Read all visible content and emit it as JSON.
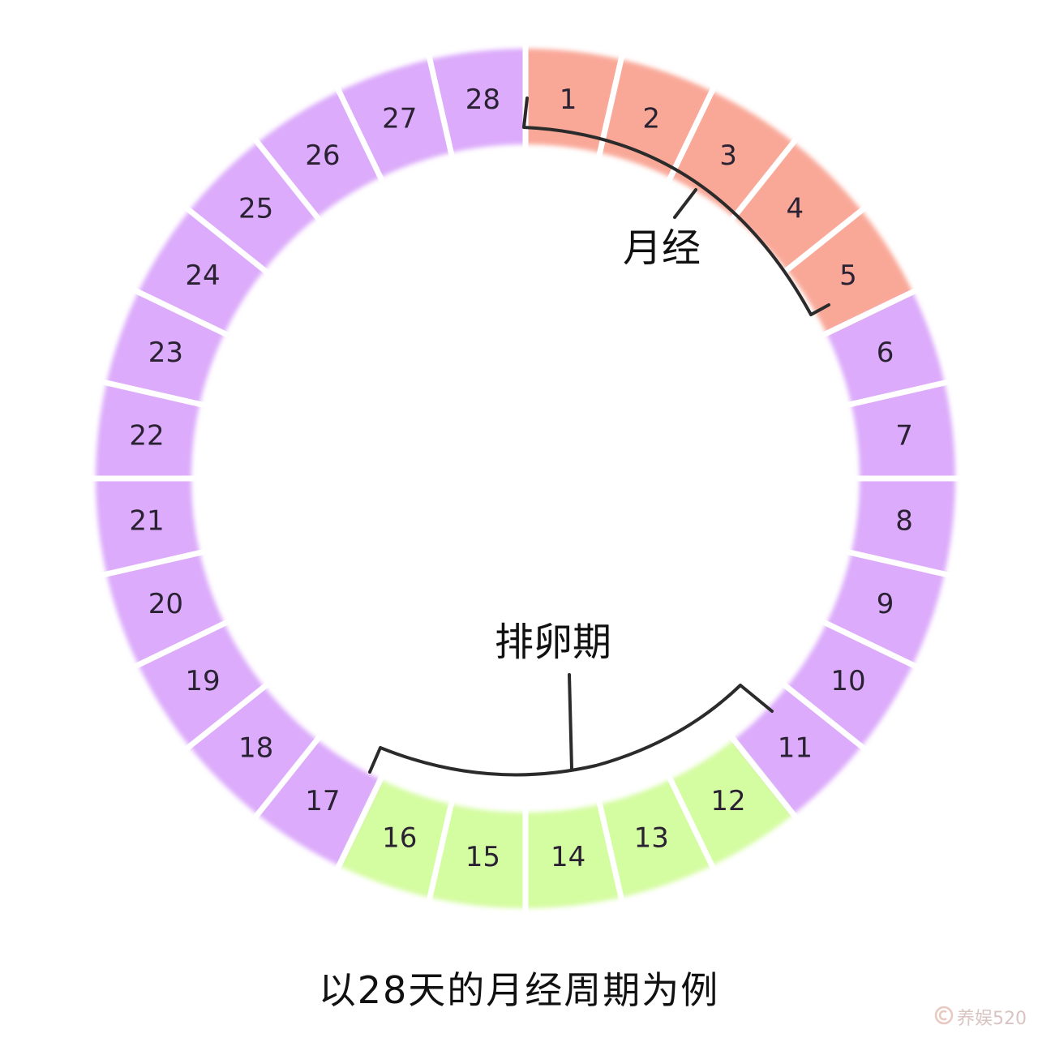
{
  "days": [
    {
      "label": "1",
      "phase": "menstruation"
    },
    {
      "label": "2",
      "phase": "menstruation"
    },
    {
      "label": "3",
      "phase": "menstruation"
    },
    {
      "label": "4",
      "phase": "menstruation"
    },
    {
      "label": "5",
      "phase": "menstruation"
    },
    {
      "label": "6",
      "phase": "other"
    },
    {
      "label": "7",
      "phase": "other"
    },
    {
      "label": "8",
      "phase": "other"
    },
    {
      "label": "9",
      "phase": "other"
    },
    {
      "label": "10",
      "phase": "other"
    },
    {
      "label": "11",
      "phase": "other"
    },
    {
      "label": "12",
      "phase": "ovulation"
    },
    {
      "label": "13",
      "phase": "ovulation"
    },
    {
      "label": "14",
      "phase": "ovulation"
    },
    {
      "label": "15",
      "phase": "ovulation"
    },
    {
      "label": "16",
      "phase": "ovulation"
    },
    {
      "label": "17",
      "phase": "other"
    },
    {
      "label": "18",
      "phase": "other"
    },
    {
      "label": "19",
      "phase": "other"
    },
    {
      "label": "20",
      "phase": "other"
    },
    {
      "label": "21",
      "phase": "other"
    },
    {
      "label": "22",
      "phase": "other"
    },
    {
      "label": "23",
      "phase": "other"
    },
    {
      "label": "24",
      "phase": "other"
    },
    {
      "label": "25",
      "phase": "other"
    },
    {
      "label": "26",
      "phase": "other"
    },
    {
      "label": "27",
      "phase": "other"
    },
    {
      "label": "28",
      "phase": "other"
    }
  ],
  "colors": {
    "menstruation": "#f9a898",
    "ovulation": "#d4fca0",
    "other": "#dcabfb",
    "bracket": "#2b2b2b"
  },
  "labels": {
    "menstruation": "月经",
    "ovulation": "排卵期"
  },
  "caption": "以28天的月经周期为例",
  "watermark": {
    "text": "养娱520"
  }
}
